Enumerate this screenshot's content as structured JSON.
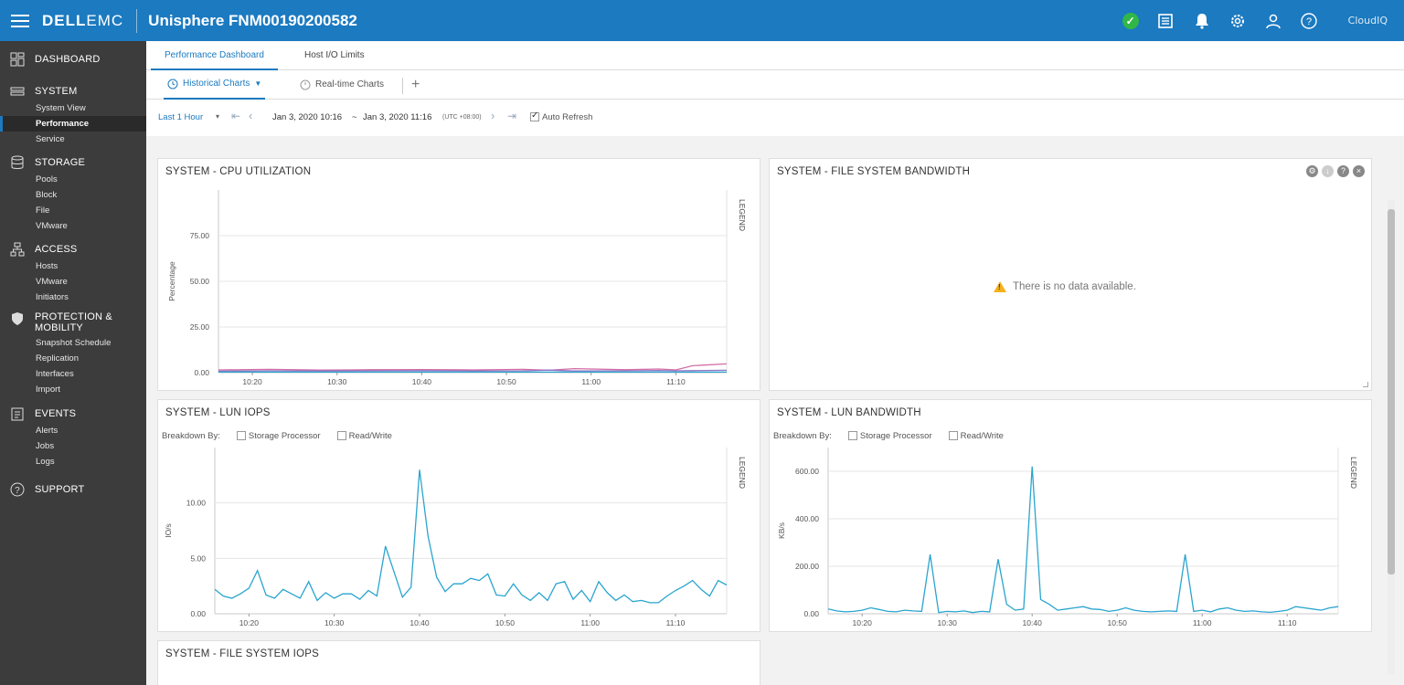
{
  "header": {
    "brand_dell": "DELL",
    "brand_emc": "EMC",
    "title": "Unisphere FNM00190200582",
    "cloudiq": "CloudIQ",
    "colors": {
      "bar": "#1b7ac0",
      "ok": "#31b648"
    },
    "icons": [
      "status-ok-icon",
      "news-icon",
      "bell-icon",
      "gear-icon",
      "user-icon",
      "help-icon",
      "cloudiq-icon"
    ]
  },
  "sidebar": {
    "sections": [
      {
        "label": "DASHBOARD",
        "icon": "dashboard-icon",
        "items": []
      },
      {
        "label": "SYSTEM",
        "icon": "system-icon",
        "items": [
          "System View",
          "Performance",
          "Service"
        ]
      },
      {
        "label": "STORAGE",
        "icon": "storage-icon",
        "items": [
          "Pools",
          "Block",
          "File",
          "VMware"
        ]
      },
      {
        "label": "ACCESS",
        "icon": "access-icon",
        "items": [
          "Hosts",
          "VMware",
          "Initiators"
        ]
      },
      {
        "label_line1": "PROTECTION &",
        "label_line2": "MOBILITY",
        "icon": "shield-icon",
        "items": [
          "Snapshot Schedule",
          "Replication",
          "Interfaces",
          "Import"
        ]
      },
      {
        "label": "EVENTS",
        "icon": "events-icon",
        "items": [
          "Alerts",
          "Jobs",
          "Logs"
        ]
      },
      {
        "label": "SUPPORT",
        "icon": "support-icon",
        "items": []
      }
    ],
    "active_item": "Performance"
  },
  "tabs": {
    "primary": [
      "Performance Dashboard",
      "Host I/O Limits"
    ],
    "secondary": [
      "Historical Charts",
      "Real-time Charts"
    ],
    "add": "+"
  },
  "toolbar": {
    "range": "Last 1 Hour",
    "dropdown_arrow": "▾",
    "start": "Jan 3, 2020 10:16",
    "tilde": "~",
    "end": "Jan 3, 2020 11:16",
    "tz": "(UTC +08:00)",
    "auto_refresh": "Auto Refresh",
    "auto_refresh_checked": true
  },
  "panels": {
    "cpu": {
      "title": "SYSTEM - CPU UTILIZATION"
    },
    "fs_bandwidth": {
      "title": "SYSTEM - FILE SYSTEM BANDWIDTH",
      "no_data": "There is no data available."
    },
    "lun_iops": {
      "title": "SYSTEM - LUN IOPS",
      "breakdown_label": "Breakdown By:",
      "opt1": "Storage Processor",
      "opt2": "Read/Write"
    },
    "lun_bandwidth": {
      "title": "SYSTEM - LUN BANDWIDTH",
      "breakdown_label": "Breakdown By:",
      "opt1": "Storage Processor",
      "opt2": "Read/Write"
    },
    "fs_iops": {
      "title": "SYSTEM - FILE SYSTEM IOPS"
    }
  },
  "chart_data": [
    {
      "type": "line",
      "title": "SYSTEM - CPU UTILIZATION",
      "ylabel": "Percentage",
      "legend_label": "LEGEND",
      "ylim": [
        0,
        100
      ],
      "yticks": [
        "0.00",
        "25.00",
        "50.00",
        "75.00"
      ],
      "xticks": [
        "10:20",
        "10:30",
        "10:40",
        "10:50",
        "11:00",
        "11:10"
      ],
      "x_minutes": [
        16,
        22,
        28,
        34,
        40,
        46,
        52,
        55,
        58,
        64,
        68,
        70,
        72,
        76
      ],
      "series": [
        {
          "color": "#d36fa4",
          "values": [
            1.5,
            1.8,
            1.4,
            1.6,
            1.7,
            1.5,
            1.8,
            1.3,
            2.2,
            1.6,
            2.0,
            1.5,
            3.8,
            4.8
          ]
        },
        {
          "color": "#8e73c7",
          "values": [
            0.8,
            1.0,
            0.9,
            1.0,
            1.1,
            0.9,
            1.0,
            1.4,
            0.9,
            1.0,
            1.2,
            1.0,
            1.1,
            1.3
          ]
        },
        {
          "color": "#2aa5cf",
          "values": [
            0.3,
            0.3,
            0.3,
            0.3,
            0.3,
            0.3,
            0.3,
            0.3,
            0.3,
            0.3,
            0.3,
            0.3,
            0.3,
            0.3
          ]
        }
      ]
    },
    {
      "type": "line",
      "title": "SYSTEM - LUN IOPS",
      "ylabel": "IO/s",
      "legend_label": "LEGEND",
      "ylim": [
        0,
        15
      ],
      "yticks": [
        "0.00",
        "5.00",
        "10.00"
      ],
      "xticks": [
        "10:20",
        "10:30",
        "10:40",
        "10:50",
        "11:00",
        "11:10"
      ],
      "x_start": 16,
      "x_step": 1,
      "series": [
        {
          "color": "#2aa5cf",
          "values": [
            2.2,
            1.6,
            1.4,
            1.8,
            2.3,
            3.9,
            1.7,
            1.4,
            2.2,
            1.8,
            1.4,
            2.9,
            1.2,
            1.9,
            1.4,
            1.8,
            1.8,
            1.3,
            2.1,
            1.6,
            6.1,
            3.8,
            1.5,
            2.4,
            13.0,
            7.0,
            3.3,
            2.0,
            2.7,
            2.7,
            3.2,
            3.0,
            3.6,
            1.7,
            1.6,
            2.7,
            1.7,
            1.2,
            1.9,
            1.2,
            2.7,
            2.9,
            1.3,
            2.1,
            1.1,
            2.9,
            1.9,
            1.2,
            1.7,
            1.1,
            1.2,
            1.0,
            1.0,
            1.6,
            2.1,
            2.5,
            3.0,
            2.2,
            1.6,
            3.0,
            2.6
          ]
        }
      ]
    },
    {
      "type": "line",
      "title": "SYSTEM - LUN BANDWIDTH",
      "ylabel": "KB/s",
      "legend_label": "LEGEND",
      "ylim": [
        0,
        700
      ],
      "yticks": [
        "0.00",
        "200.00",
        "400.00",
        "600.00"
      ],
      "xticks": [
        "10:20",
        "10:30",
        "10:40",
        "10:50",
        "11:00",
        "11:10"
      ],
      "x_start": 16,
      "x_step": 1,
      "series": [
        {
          "color": "#2aa5cf",
          "values": [
            20,
            12,
            8,
            10,
            15,
            25,
            18,
            10,
            8,
            15,
            12,
            10,
            250,
            5,
            10,
            8,
            12,
            5,
            10,
            8,
            230,
            40,
            15,
            20,
            620,
            60,
            40,
            15,
            20,
            25,
            30,
            20,
            18,
            10,
            15,
            25,
            15,
            10,
            8,
            10,
            12,
            10,
            250,
            10,
            15,
            8,
            20,
            25,
            15,
            10,
            12,
            8,
            6,
            10,
            15,
            30,
            25,
            20,
            15,
            25,
            30
          ]
        }
      ]
    }
  ]
}
